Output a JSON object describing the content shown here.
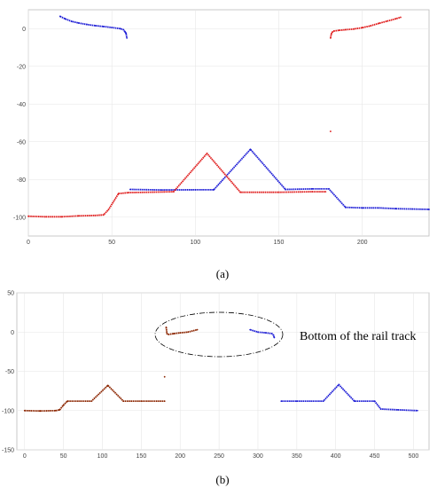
{
  "chart_data": [
    {
      "type": "scatter",
      "caption": "(a)",
      "xlim": [
        0,
        240
      ],
      "ylim": [
        -110,
        10
      ],
      "xticks": [
        0,
        50,
        100,
        150,
        200
      ],
      "yticks": [
        0,
        -20,
        -40,
        -60,
        -80,
        -100
      ],
      "grid": true,
      "series": [
        {
          "color": "#1f1fd6",
          "points": [
            [
              19,
              6.5
            ],
            [
              22,
              5.2
            ],
            [
              26,
              3.8
            ],
            [
              30,
              3.0
            ],
            [
              35,
              2.2
            ],
            [
              40,
              1.6
            ],
            [
              45,
              1.1
            ],
            [
              50,
              0.6
            ],
            [
              55,
              0.0
            ],
            [
              57,
              -0.6
            ],
            [
              58,
              -1.8
            ],
            [
              58.5,
              -2.5
            ],
            [
              59,
              -5
            ]
          ]
        },
        {
          "color": "#1f1fd6",
          "points": [
            [
              61,
              -85.3
            ],
            [
              80,
              -85.6
            ],
            [
              100,
              -85.5
            ],
            [
              111,
              -85.5
            ],
            [
              133,
              -64.0
            ],
            [
              154,
              -85.3
            ],
            [
              170,
              -85.0
            ],
            [
              180,
              -85.0
            ],
            [
              190,
              -94.8
            ],
            [
              200,
              -95.1
            ],
            [
              210,
              -95.1
            ],
            [
              220,
              -95.5
            ],
            [
              230,
              -95.7
            ],
            [
              240,
              -95.9
            ]
          ]
        },
        {
          "color": "#e02020",
          "points": [
            [
              181,
              -5
            ],
            [
              181.5,
              -2.8
            ],
            [
              182,
              -1.9
            ],
            [
              183,
              -1.3
            ],
            [
              186,
              -0.9
            ],
            [
              190,
              -0.6
            ],
            [
              195,
              -0.2
            ],
            [
              200,
              0.5
            ],
            [
              205,
              1.5
            ],
            [
              210,
              2.8
            ],
            [
              215,
              4.0
            ],
            [
              220,
              5.2
            ],
            [
              223,
              6.0
            ]
          ]
        },
        {
          "color": "#e02020",
          "points": [
            [
              0,
              -99.5
            ],
            [
              10,
              -99.8
            ],
            [
              20,
              -99.8
            ],
            [
              30,
              -99.3
            ],
            [
              40,
              -99.1
            ],
            [
              45,
              -98.8
            ],
            [
              48,
              -96.0
            ],
            [
              54,
              -87.5
            ],
            [
              60,
              -87.0
            ],
            [
              87,
              -86.5
            ],
            [
              107,
              -66.2
            ],
            [
              127,
              -86.8
            ],
            [
              150,
              -86.8
            ],
            [
              170,
              -86.5
            ],
            [
              178,
              -86.5
            ]
          ]
        }
      ],
      "outliers": [
        {
          "color": "#e02020",
          "x": 181,
          "y": -54.5
        }
      ]
    },
    {
      "type": "scatter",
      "caption": "(b)",
      "annotation": "Bottom of the rail track",
      "xlim": [
        -10,
        520
      ],
      "ylim": [
        -150,
        50
      ],
      "xticks": [
        0,
        50,
        100,
        150,
        200,
        250,
        300,
        350,
        400,
        450,
        500
      ],
      "yticks": [
        50,
        0,
        -50,
        -100,
        -150
      ],
      "grid": true,
      "series": [
        {
          "color": "#8b2500",
          "points": [
            [
              0,
              -100
            ],
            [
              20,
              -100.5
            ],
            [
              40,
              -100
            ],
            [
              45,
              -99
            ],
            [
              50,
              -93
            ],
            [
              55,
              -88
            ],
            [
              86,
              -88
            ],
            [
              107,
              -68
            ],
            [
              127,
              -88
            ],
            [
              150,
              -88
            ],
            [
              180,
              -88
            ]
          ]
        },
        {
          "color": "#8b2500",
          "points": [
            [
              182,
              6
            ],
            [
              183,
              -2
            ],
            [
              185,
              -3
            ],
            [
              192,
              -2
            ],
            [
              200,
              -1
            ],
            [
              210,
              0
            ],
            [
              222,
              3
            ]
          ]
        },
        {
          "color": "#1f1fd6",
          "points": [
            [
              290,
              3
            ],
            [
              300,
              0
            ],
            [
              310,
              -1
            ],
            [
              318,
              -2
            ],
            [
              320,
              -4
            ],
            [
              321,
              -7
            ]
          ]
        },
        {
          "color": "#1f1fd6",
          "points": [
            [
              330,
              -88
            ],
            [
              350,
              -88
            ],
            [
              384,
              -88
            ],
            [
              404,
              -67
            ],
            [
              424,
              -88
            ],
            [
              450,
              -88
            ],
            [
              458,
              -98
            ],
            [
              480,
              -99
            ],
            [
              505,
              -100
            ]
          ]
        }
      ],
      "outliers": [
        {
          "color": "#8b2500",
          "x": 180,
          "y": -57
        }
      ]
    }
  ]
}
